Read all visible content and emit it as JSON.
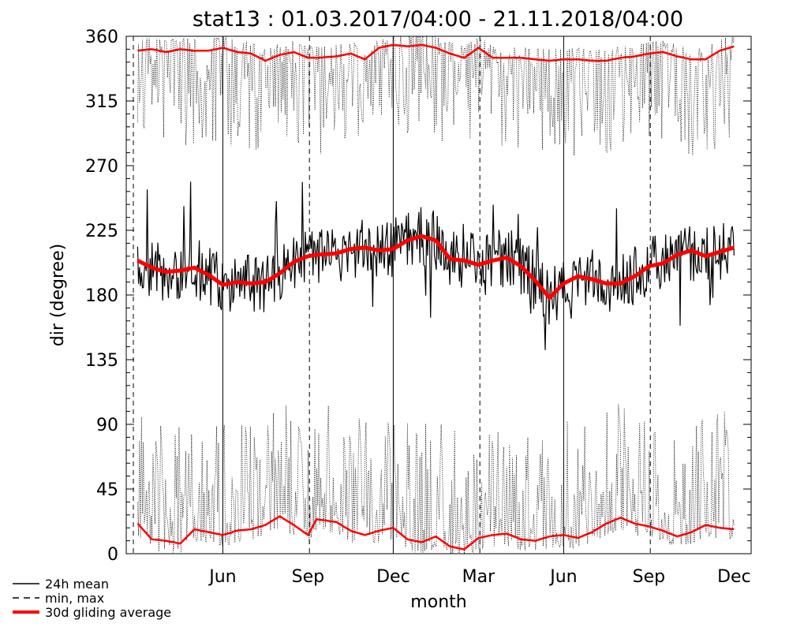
{
  "chart_data": {
    "type": "line",
    "title": "stat13 : 01.03.2017/04:00 - 21.11.2018/04:00",
    "xlabel": "month",
    "ylabel": "dir (degree)",
    "ylim": [
      0,
      360
    ],
    "y_ticks": [
      0,
      45,
      90,
      135,
      180,
      225,
      270,
      315,
      360
    ],
    "x_ticks": [
      "Jun",
      "Sep",
      "Dec",
      "Mar",
      "Jun",
      "Sep",
      "Dec"
    ],
    "x_unit": "month index (0 = Mar 2017)",
    "xlim": [
      -0.4,
      21.6
    ],
    "separators": [
      {
        "x": -0.15,
        "style": "dashed"
      },
      {
        "x": 3.0,
        "style": "solid"
      },
      {
        "x": 6.05,
        "style": "dashed"
      },
      {
        "x": 9.0,
        "style": "solid"
      },
      {
        "x": 12.05,
        "style": "dashed"
      },
      {
        "x": 15.0,
        "style": "solid"
      },
      {
        "x": 18.05,
        "style": "dashed"
      }
    ],
    "legend": [
      {
        "label": "24h mean",
        "style": "solid",
        "color": "#000000"
      },
      {
        "label": "min, max",
        "style": "dashed",
        "color": "#000000"
      },
      {
        "label": "30d gliding average",
        "style": "thick",
        "color": "#ff0000"
      }
    ],
    "legend_position": "bottom-left",
    "series": [
      {
        "name": "30d gliding average",
        "style": "mean_avg",
        "x": [
          0.0,
          0.5,
          1.0,
          1.5,
          2.0,
          2.5,
          3.0,
          3.5,
          4.0,
          4.5,
          5.0,
          5.5,
          6.0,
          6.3,
          7.0,
          7.5,
          8.0,
          8.5,
          9.0,
          9.5,
          10.0,
          10.5,
          11.0,
          11.5,
          12.0,
          12.5,
          13.0,
          13.5,
          14.0,
          14.5,
          15.0,
          15.5,
          16.0,
          16.5,
          17.0,
          17.5,
          18.0,
          18.5,
          19.0,
          19.5,
          20.0,
          20.5,
          21.0
        ],
        "y": [
          204,
          199,
          196,
          197,
          199,
          194,
          187,
          189,
          188,
          189,
          195,
          203,
          207,
          208,
          209,
          212,
          213,
          211,
          212,
          218,
          221,
          218,
          205,
          204,
          201,
          204,
          206,
          200,
          190,
          178,
          188,
          193,
          191,
          188,
          188,
          193,
          200,
          202,
          208,
          211,
          207,
          210,
          213
        ]
      },
      {
        "name": "30d gliding average (max)",
        "style": "max_avg",
        "x": [
          0.0,
          0.5,
          1.0,
          1.5,
          2.0,
          2.5,
          3.0,
          3.5,
          4.0,
          4.5,
          5.0,
          5.5,
          6.0,
          6.3,
          7.0,
          7.5,
          8.0,
          8.5,
          9.0,
          9.5,
          10.0,
          10.5,
          11.0,
          11.5,
          12.0,
          12.5,
          13.0,
          13.5,
          14.0,
          14.5,
          15.0,
          15.5,
          16.0,
          16.5,
          17.0,
          17.5,
          18.0,
          18.5,
          19.0,
          19.5,
          20.0,
          20.5,
          21.0
        ],
        "y": [
          350,
          351,
          349,
          351,
          350,
          350,
          352,
          349,
          348,
          343,
          347,
          349,
          345,
          345,
          346,
          348,
          344,
          352,
          354,
          353,
          354,
          352,
          348,
          345,
          352,
          345,
          345,
          345,
          344,
          343,
          344,
          344,
          343,
          343,
          345,
          346,
          348,
          349,
          346,
          344,
          344,
          350,
          353
        ]
      },
      {
        "name": "30d gliding average (min)",
        "style": "min_avg",
        "x": [
          0.0,
          0.5,
          1.0,
          1.5,
          2.0,
          2.5,
          3.0,
          3.5,
          4.0,
          4.5,
          5.0,
          5.5,
          6.0,
          6.3,
          7.0,
          7.5,
          8.0,
          8.5,
          9.0,
          9.5,
          10.0,
          10.5,
          11.0,
          11.5,
          12.0,
          12.5,
          13.0,
          13.5,
          14.0,
          14.5,
          15.0,
          15.5,
          16.0,
          16.5,
          17.0,
          17.5,
          18.0,
          18.5,
          19.0,
          19.5,
          20.0,
          20.5,
          21.0
        ],
        "y": [
          21,
          10,
          9,
          7,
          17,
          15,
          13,
          16,
          17,
          20,
          26,
          20,
          13,
          24,
          22,
          16,
          13,
          16,
          18,
          10,
          8,
          12,
          5,
          3,
          11,
          13,
          14,
          10,
          9,
          12,
          13,
          11,
          15,
          21,
          25,
          21,
          19,
          16,
          12,
          15,
          20,
          18,
          17
        ]
      }
    ]
  }
}
